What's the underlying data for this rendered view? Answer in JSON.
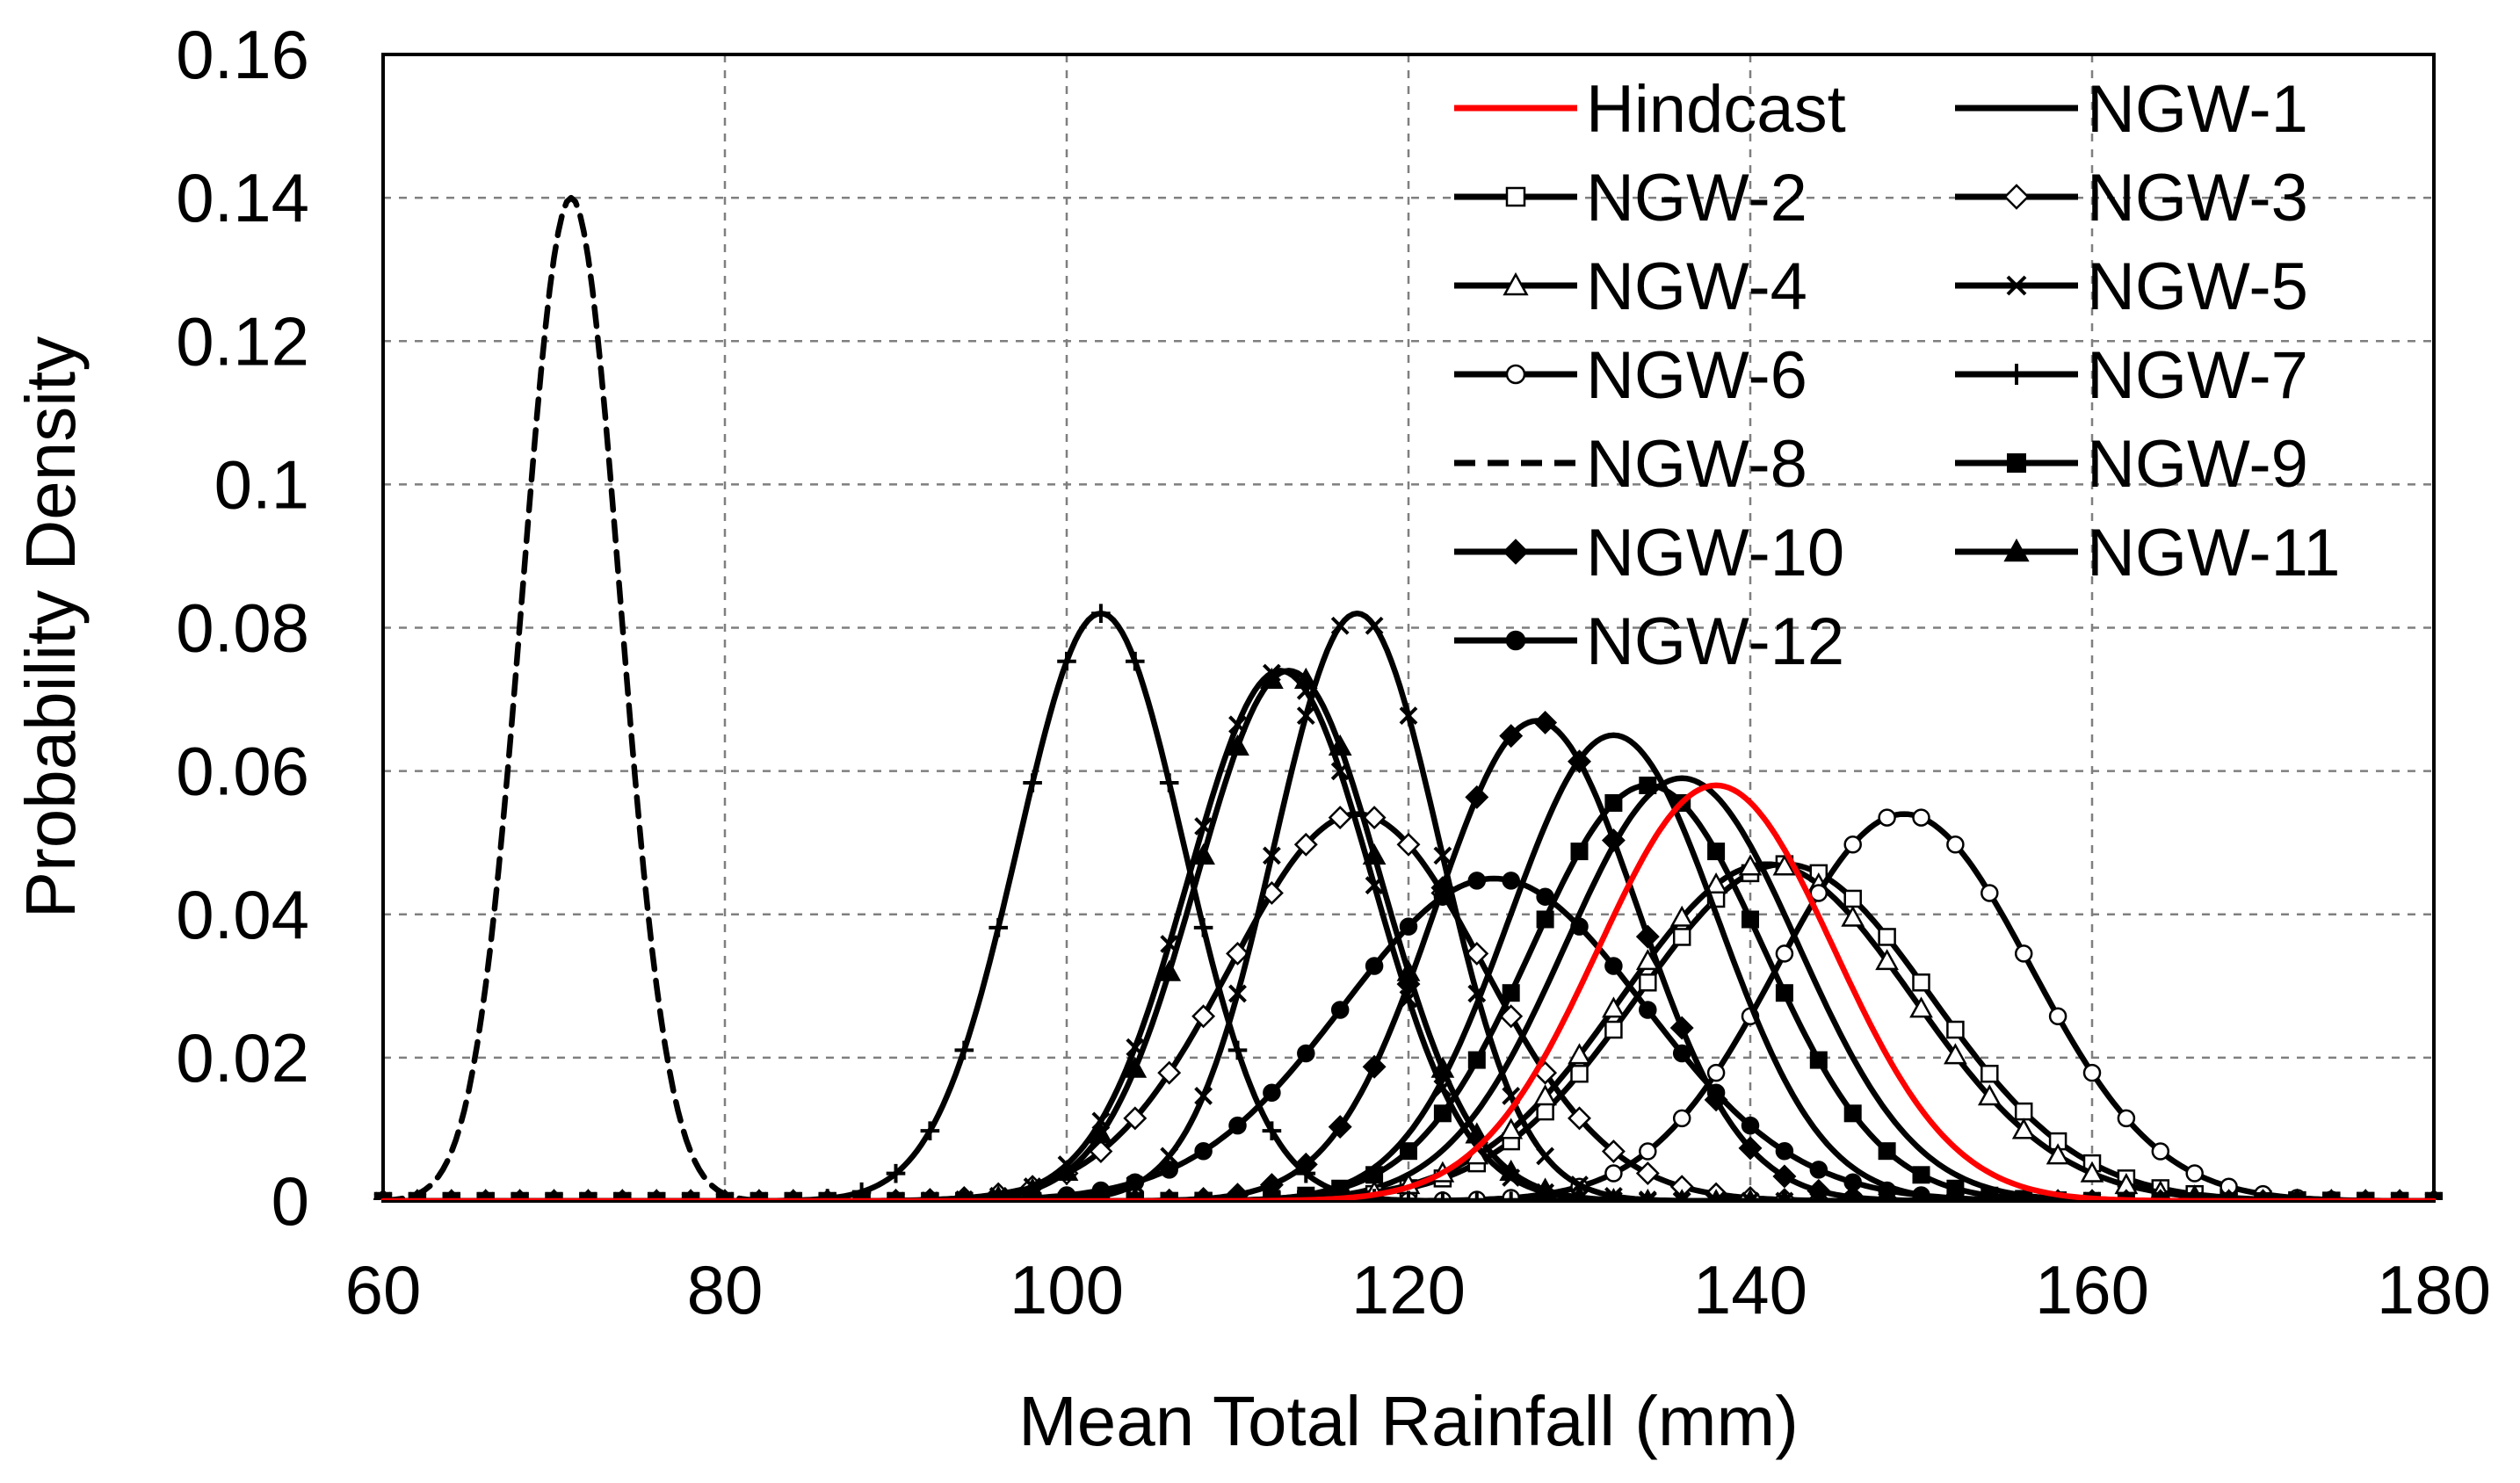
{
  "chart_data": {
    "type": "line",
    "title": "",
    "xlabel": "Mean Total Rainfall (mm)",
    "ylabel": "Probability Density",
    "xlim": [
      60,
      180
    ],
    "ylim": [
      0,
      0.16
    ],
    "xticks": [
      60,
      80,
      100,
      120,
      140,
      160,
      180
    ],
    "xtick_labels": [
      "60",
      "80",
      "100",
      "120",
      "140",
      "160",
      "180"
    ],
    "yticks": [
      0,
      0.02,
      0.04,
      0.06,
      0.08,
      0.1,
      0.12,
      0.14,
      0.16
    ],
    "ytick_labels": [
      "0",
      "0.02",
      "0.04",
      "0.06",
      "0.08",
      "0.1",
      "0.12",
      "0.14",
      "0.16"
    ],
    "grid": true,
    "legend_position": "top-right",
    "sample_step": 2,
    "series": [
      {
        "name": "Hindcast",
        "color": "#ff0000",
        "dash": "solid",
        "marker": "none",
        "mean": 138.0,
        "std": 6.9,
        "peak_density": 0.058
      },
      {
        "name": "NGW-1",
        "color": "#000000",
        "dash": "solid",
        "marker": "none",
        "mean": 136.0,
        "std": 6.8,
        "peak_density": 0.059
      },
      {
        "name": "NGW-2",
        "color": "#000000",
        "dash": "solid",
        "marker": "square-open",
        "mean": 142.0,
        "std": 8.6,
        "peak_density": 0.047
      },
      {
        "name": "NGW-3",
        "color": "#000000",
        "dash": "solid",
        "marker": "diamond-open",
        "mean": 117.0,
        "std": 7.4,
        "peak_density": 0.054
      },
      {
        "name": "NGW-4",
        "color": "#000000",
        "dash": "solid",
        "marker": "triangle-open",
        "mean": 141.0,
        "std": 8.5,
        "peak_density": 0.047
      },
      {
        "name": "NGW-5",
        "color": "#000000",
        "dash": "solid",
        "marker": "x",
        "mean": 112.5,
        "std": 5.4,
        "peak_density": 0.074
      },
      {
        "name": "NGW-6",
        "color": "#000000",
        "dash": "solid",
        "marker": "circle-open",
        "mean": 149.0,
        "std": 7.4,
        "peak_density": 0.054
      },
      {
        "name": "NGW-7",
        "color": "#000000",
        "dash": "solid",
        "marker": "plus",
        "mean": 102.0,
        "std": 4.85,
        "peak_density": 0.082
      },
      {
        "name": "NGW-8",
        "color": "#000000",
        "dash": "dashed",
        "marker": "none",
        "mean": 71.0,
        "std": 2.85,
        "peak_density": 0.14
      },
      {
        "name": "NGW-9",
        "color": "#000000",
        "dash": "solid",
        "marker": "square-filled",
        "mean": 134.0,
        "std": 6.8,
        "peak_density": 0.058
      },
      {
        "name": "NGW-10",
        "color": "#000000",
        "dash": "solid",
        "marker": "diamond-filled",
        "mean": 127.5,
        "std": 5.95,
        "peak_density": 0.067
      },
      {
        "name": "NGW-11",
        "color": "#000000",
        "dash": "solid",
        "marker": "triangle-filled",
        "mean": 113.0,
        "std": 5.4,
        "peak_density": 0.074
      },
      {
        "name": "NGW-12",
        "color": "#000000",
        "dash": "solid",
        "marker": "circle-filled",
        "mean": 125.0,
        "std": 8.8,
        "peak_density": 0.045
      },
      {
        "name": "",
        "color": "#000000",
        "dash": "solid",
        "marker": "x",
        "mean": 117.0,
        "std": 4.85,
        "peak_density": 0.082
      },
      {
        "name": "",
        "color": "#000000",
        "dash": "solid",
        "marker": "none",
        "mean": 132.0,
        "std": 6.1,
        "peak_density": 0.065
      }
    ]
  }
}
